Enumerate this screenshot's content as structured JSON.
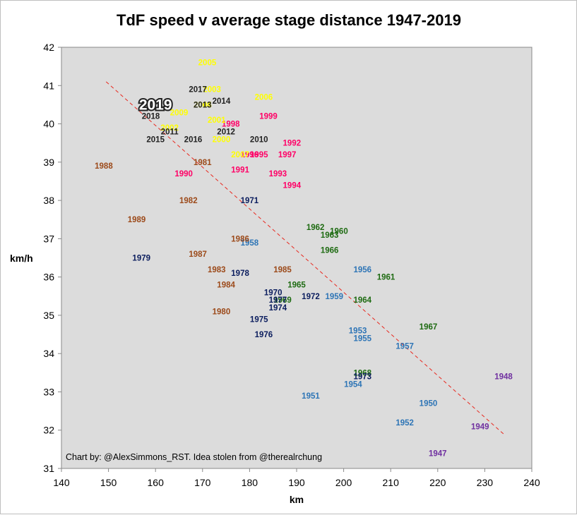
{
  "chart_data": {
    "type": "scatter",
    "title": "TdF speed v average stage distance 1947-2019",
    "xlabel": "km",
    "ylabel": "km/h",
    "xlim": [
      140,
      240
    ],
    "ylim": [
      31,
      42
    ],
    "xticks": [
      "140",
      "150",
      "160",
      "170",
      "180",
      "190",
      "200",
      "210",
      "220",
      "230",
      "240"
    ],
    "yticks": [
      "31",
      "32",
      "33",
      "34",
      "35",
      "36",
      "37",
      "38",
      "39",
      "40",
      "41",
      "42"
    ],
    "grid": false,
    "legend": "none",
    "annotation": "Chart by: @AlexSimmons_RST. Idea stolen from @therealrchung",
    "highlight_label": "2019",
    "trendline": {
      "style": "dashed",
      "color": "#e8281e",
      "from": [
        149.5,
        41.1
      ],
      "to": [
        234,
        31.9
      ]
    },
    "colors": {
      "background": "#dcdcdc",
      "1940s": "#7030a0",
      "1950s": "#2e75b6",
      "1960s": "#1e6b12",
      "1970s": "#0b1d5e",
      "1980s": "#9c4a1a",
      "1990s": "#ff0066",
      "2000s": "#ffff00",
      "2010s": "#222222"
    },
    "points": [
      {
        "label": "1947",
        "x": 220,
        "y": 31.4,
        "group": "1940s"
      },
      {
        "label": "1948",
        "x": 234,
        "y": 33.4,
        "group": "1940s"
      },
      {
        "label": "1949",
        "x": 229,
        "y": 32.1,
        "group": "1940s"
      },
      {
        "label": "1950",
        "x": 218,
        "y": 32.7,
        "group": "1950s"
      },
      {
        "label": "1951",
        "x": 193,
        "y": 32.9,
        "group": "1950s"
      },
      {
        "label": "1952",
        "x": 213,
        "y": 32.2,
        "group": "1950s"
      },
      {
        "label": "1953",
        "x": 203,
        "y": 34.6,
        "group": "1950s"
      },
      {
        "label": "1954",
        "x": 202,
        "y": 33.2,
        "group": "1950s"
      },
      {
        "label": "1955",
        "x": 204,
        "y": 34.4,
        "group": "1950s"
      },
      {
        "label": "1956",
        "x": 204,
        "y": 36.2,
        "group": "1950s"
      },
      {
        "label": "1957",
        "x": 213,
        "y": 34.2,
        "group": "1950s"
      },
      {
        "label": "1958",
        "x": 180,
        "y": 36.9,
        "group": "1950s"
      },
      {
        "label": "1959",
        "x": 198,
        "y": 35.5,
        "group": "1950s"
      },
      {
        "label": "1960",
        "x": 199,
        "y": 37.2,
        "group": "1960s"
      },
      {
        "label": "1961",
        "x": 209,
        "y": 36,
        "group": "1960s"
      },
      {
        "label": "1962",
        "x": 194,
        "y": 37.3,
        "group": "1960s"
      },
      {
        "label": "1963",
        "x": 197,
        "y": 37.1,
        "group": "1960s"
      },
      {
        "label": "1964",
        "x": 204,
        "y": 35.4,
        "group": "1960s"
      },
      {
        "label": "1965",
        "x": 190,
        "y": 35.8,
        "group": "1960s"
      },
      {
        "label": "1966",
        "x": 197,
        "y": 36.7,
        "group": "1960s"
      },
      {
        "label": "1967",
        "x": 218,
        "y": 34.7,
        "group": "1960s"
      },
      {
        "label": "1968",
        "x": 204,
        "y": 33.5,
        "group": "1960s"
      },
      {
        "label": "1969",
        "x": 187,
        "y": 35.4,
        "group": "1960s"
      },
      {
        "label": "1970",
        "x": 185,
        "y": 35.6,
        "group": "1970s"
      },
      {
        "label": "1971",
        "x": 180,
        "y": 38,
        "group": "1970s"
      },
      {
        "label": "1972",
        "x": 193,
        "y": 35.5,
        "group": "1970s"
      },
      {
        "label": "1973",
        "x": 204,
        "y": 33.4,
        "group": "1970s"
      },
      {
        "label": "1974",
        "x": 186,
        "y": 35.2,
        "group": "1970s"
      },
      {
        "label": "1975",
        "x": 182,
        "y": 34.9,
        "group": "1970s"
      },
      {
        "label": "1976",
        "x": 183,
        "y": 34.5,
        "group": "1970s"
      },
      {
        "label": "1977",
        "x": 186,
        "y": 35.4,
        "group": "1970s"
      },
      {
        "label": "1978",
        "x": 178,
        "y": 36.1,
        "group": "1970s"
      },
      {
        "label": "1979",
        "x": 157,
        "y": 36.5,
        "group": "1970s"
      },
      {
        "label": "1980",
        "x": 174,
        "y": 35.1,
        "group": "1980s"
      },
      {
        "label": "1981",
        "x": 170,
        "y": 39,
        "group": "1980s"
      },
      {
        "label": "1982",
        "x": 167,
        "y": 38,
        "group": "1980s"
      },
      {
        "label": "1983",
        "x": 173,
        "y": 36.2,
        "group": "1980s"
      },
      {
        "label": "1984",
        "x": 175,
        "y": 35.8,
        "group": "1980s"
      },
      {
        "label": "1985",
        "x": 187,
        "y": 36.2,
        "group": "1980s"
      },
      {
        "label": "1986",
        "x": 178,
        "y": 37,
        "group": "1980s"
      },
      {
        "label": "1987",
        "x": 169,
        "y": 36.6,
        "group": "1980s"
      },
      {
        "label": "1988",
        "x": 149,
        "y": 38.9,
        "group": "1980s"
      },
      {
        "label": "1989",
        "x": 156,
        "y": 37.5,
        "group": "1980s"
      },
      {
        "label": "1990",
        "x": 166,
        "y": 38.7,
        "group": "1990s"
      },
      {
        "label": "1991",
        "x": 178,
        "y": 38.8,
        "group": "1990s"
      },
      {
        "label": "1992",
        "x": 189,
        "y": 39.5,
        "group": "1990s"
      },
      {
        "label": "1993",
        "x": 186,
        "y": 38.7,
        "group": "1990s"
      },
      {
        "label": "1994",
        "x": 189,
        "y": 38.4,
        "group": "1990s"
      },
      {
        "label": "1995",
        "x": 182,
        "y": 39.2,
        "group": "1990s"
      },
      {
        "label": "1996",
        "x": 180,
        "y": 39.2,
        "group": "1990s"
      },
      {
        "label": "1997",
        "x": 188,
        "y": 39.2,
        "group": "1990s"
      },
      {
        "label": "1998",
        "x": 176,
        "y": 40,
        "group": "1990s"
      },
      {
        "label": "1999",
        "x": 184,
        "y": 40.2,
        "group": "1990s"
      },
      {
        "label": "2000",
        "x": 174,
        "y": 39.6,
        "group": "2000s"
      },
      {
        "label": "2001",
        "x": 173,
        "y": 40.1,
        "group": "2000s"
      },
      {
        "label": "2002",
        "x": 163,
        "y": 39.9,
        "group": "2000s"
      },
      {
        "label": "2003",
        "x": 172,
        "y": 40.9,
        "group": "2000s"
      },
      {
        "label": "2004",
        "x": 170,
        "y": 40.5,
        "group": "2000s"
      },
      {
        "label": "2005",
        "x": 171,
        "y": 41.6,
        "group": "2000s"
      },
      {
        "label": "2006",
        "x": 183,
        "y": 40.7,
        "group": "2000s"
      },
      {
        "label": "2007",
        "x": 178,
        "y": 39.2,
        "group": "2000s"
      },
      {
        "label": "2008",
        "x": 170,
        "y": 40.5,
        "group": "2000s"
      },
      {
        "label": "2009",
        "x": 165,
        "y": 40.3,
        "group": "2000s"
      },
      {
        "label": "2010",
        "x": 182,
        "y": 39.6,
        "group": "2010s"
      },
      {
        "label": "2011",
        "x": 163,
        "y": 39.8,
        "group": "2010s"
      },
      {
        "label": "2012",
        "x": 175,
        "y": 39.8,
        "group": "2010s"
      },
      {
        "label": "2013",
        "x": 170,
        "y": 40.5,
        "group": "2010s"
      },
      {
        "label": "2014",
        "x": 174,
        "y": 40.6,
        "group": "2010s"
      },
      {
        "label": "2015",
        "x": 160,
        "y": 39.6,
        "group": "2010s"
      },
      {
        "label": "2016",
        "x": 168,
        "y": 39.6,
        "group": "2010s"
      },
      {
        "label": "2017",
        "x": 169,
        "y": 40.9,
        "group": "2010s"
      },
      {
        "label": "2018",
        "x": 159,
        "y": 40.2,
        "group": "2010s"
      },
      {
        "label": "2019",
        "x": 160,
        "y": 40.5,
        "group": "2010s"
      }
    ]
  }
}
